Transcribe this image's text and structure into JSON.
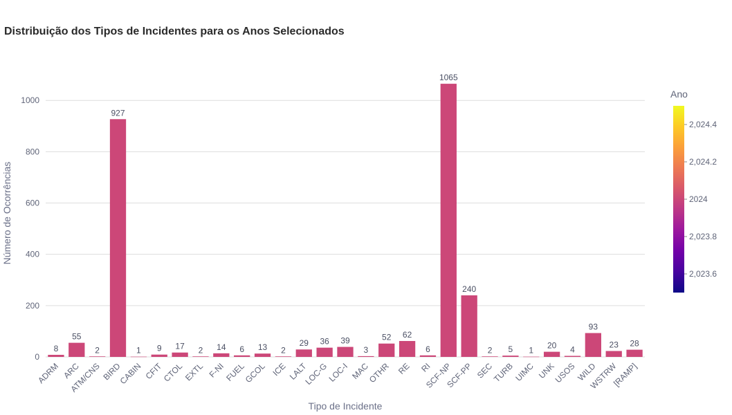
{
  "chart_data": {
    "type": "bar",
    "title": "Distribuição dos Tipos de Incidentes para os Anos Selecionados",
    "xlabel": "Tipo de Incidente",
    "ylabel": "Número de Ocorrências",
    "ylim": [
      0,
      1130
    ],
    "yticks": [
      0,
      200,
      400,
      600,
      800,
      1000
    ],
    "grid": true,
    "bar_color": "#cc4778",
    "categories": [
      "ADRM",
      "ARC",
      "ATM/CNS",
      "BIRD",
      "CABIN",
      "CFIT",
      "CTOL",
      "EXTL",
      "F-NI",
      "FUEL",
      "GCOL",
      "ICE",
      "LALT",
      "LOC-G",
      "LOC-I",
      "MAC",
      "OTHR",
      "RE",
      "RI",
      "SCF-NP",
      "SCF-PP",
      "SEC",
      "TURB",
      "UIMC",
      "UNK",
      "USOS",
      "WILD",
      "WSTRW",
      "[RAMP]"
    ],
    "values": [
      8,
      55,
      2,
      927,
      1,
      9,
      17,
      2,
      14,
      6,
      13,
      2,
      29,
      36,
      39,
      3,
      52,
      62,
      6,
      1065,
      240,
      2,
      5,
      1,
      20,
      4,
      93,
      23,
      28
    ],
    "colorbar": {
      "title": "Ano",
      "range": [
        2023.5,
        2024.5
      ],
      "ticks": [
        2023.6,
        2023.8,
        2024,
        2024.2,
        2024.4
      ],
      "tick_labels": [
        "2,023.6",
        "2,023.8",
        "2024",
        "2,024.2",
        "2,024.4"
      ],
      "colors": [
        "#0d0887",
        "#46039f",
        "#7201a8",
        "#9c179e",
        "#bd3786",
        "#d8576b",
        "#ed7953",
        "#fb9f3a",
        "#fdca26",
        "#f0f921"
      ]
    }
  }
}
